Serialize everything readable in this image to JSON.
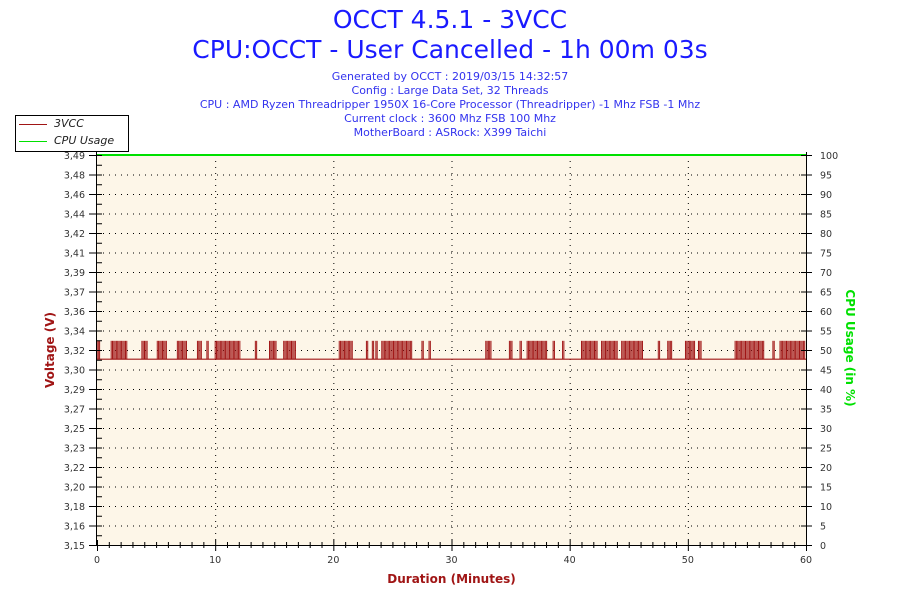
{
  "header": {
    "title": "OCCT 4.5.1 - 3VCC",
    "subtitle": "CPU:OCCT - User Cancelled - 1h 00m 03s",
    "info_lines": [
      "Generated by OCCT : 2019/03/15 14:32:57",
      "Config : Large Data Set, 32 Threads",
      "CPU : AMD Ryzen Threadripper 1950X 16-Core Processor (Threadripper) -1 Mhz FSB -1 Mhz",
      "Current clock : 3600 Mhz FSB 100 Mhz",
      "MotherBoard : ASRock: X399 Taichi"
    ]
  },
  "colors": {
    "title": "#1a1aff",
    "voltage": "#a01515",
    "cpu_usage": "#00e000",
    "plot_background": "#fdf6e8"
  },
  "chart_data": {
    "type": "line",
    "xlabel": "Duration (Minutes)",
    "ylabel": "Voltage (V)",
    "y2label": "CPU Usage (in %)",
    "xlim": [
      0,
      60
    ],
    "ylim": [
      3.15,
      3.49
    ],
    "y2lim": [
      0,
      100
    ],
    "grid": true,
    "legend": "top-left",
    "x_ticks": [
      0,
      10,
      20,
      30,
      40,
      50,
      60
    ],
    "y_tick_labels": [
      "3,15",
      "3,16",
      "3,18",
      "3,20",
      "3,22",
      "3,23",
      "3,25",
      "3,27",
      "3,29",
      "3,30",
      "3,32",
      "3,34",
      "3,36",
      "3,37",
      "3,39",
      "3,41",
      "3,42",
      "3,44",
      "3,46",
      "3,48",
      "3,49"
    ],
    "y2_ticks": [
      0,
      5,
      10,
      15,
      20,
      25,
      30,
      35,
      40,
      45,
      50,
      55,
      60,
      65,
      70,
      75,
      80,
      85,
      90,
      95,
      100
    ],
    "series": [
      {
        "name": "3VCC",
        "axis": "left",
        "base_value": 3.312,
        "high_value": 3.328,
        "high_intervals_minutes": [
          [
            0,
            0.3
          ],
          [
            1.2,
            2.6
          ],
          [
            3.8,
            4.3
          ],
          [
            5.1,
            5.9
          ],
          [
            6.8,
            7.6
          ],
          [
            8.5,
            8.9
          ],
          [
            9.3,
            9.4
          ],
          [
            10.0,
            12.1
          ],
          [
            13.4,
            13.6
          ],
          [
            14.6,
            15.2
          ],
          [
            15.8,
            16.8
          ],
          [
            20.5,
            21.7
          ],
          [
            22.8,
            22.9
          ],
          [
            23.3,
            23.4
          ],
          [
            23.6,
            23.7
          ],
          [
            24.1,
            26.7
          ],
          [
            27.5,
            27.6
          ],
          [
            28.1,
            28.2
          ],
          [
            32.9,
            33.4
          ],
          [
            34.9,
            35.2
          ],
          [
            35.8,
            35.9
          ],
          [
            36.4,
            38.1
          ],
          [
            38.6,
            38.7
          ],
          [
            39.4,
            39.5
          ],
          [
            41.0,
            42.4
          ],
          [
            42.7,
            44.1
          ],
          [
            44.4,
            46.2
          ],
          [
            47.5,
            47.6
          ],
          [
            48.3,
            48.7
          ],
          [
            49.8,
            50.6
          ],
          [
            50.9,
            51.2
          ],
          [
            54.0,
            56.5
          ],
          [
            57.2,
            57.3
          ],
          [
            57.8,
            59.9
          ]
        ]
      },
      {
        "name": "CPU Usage",
        "axis": "right",
        "x": [
          0,
          60
        ],
        "values": [
          100,
          100
        ]
      }
    ]
  }
}
